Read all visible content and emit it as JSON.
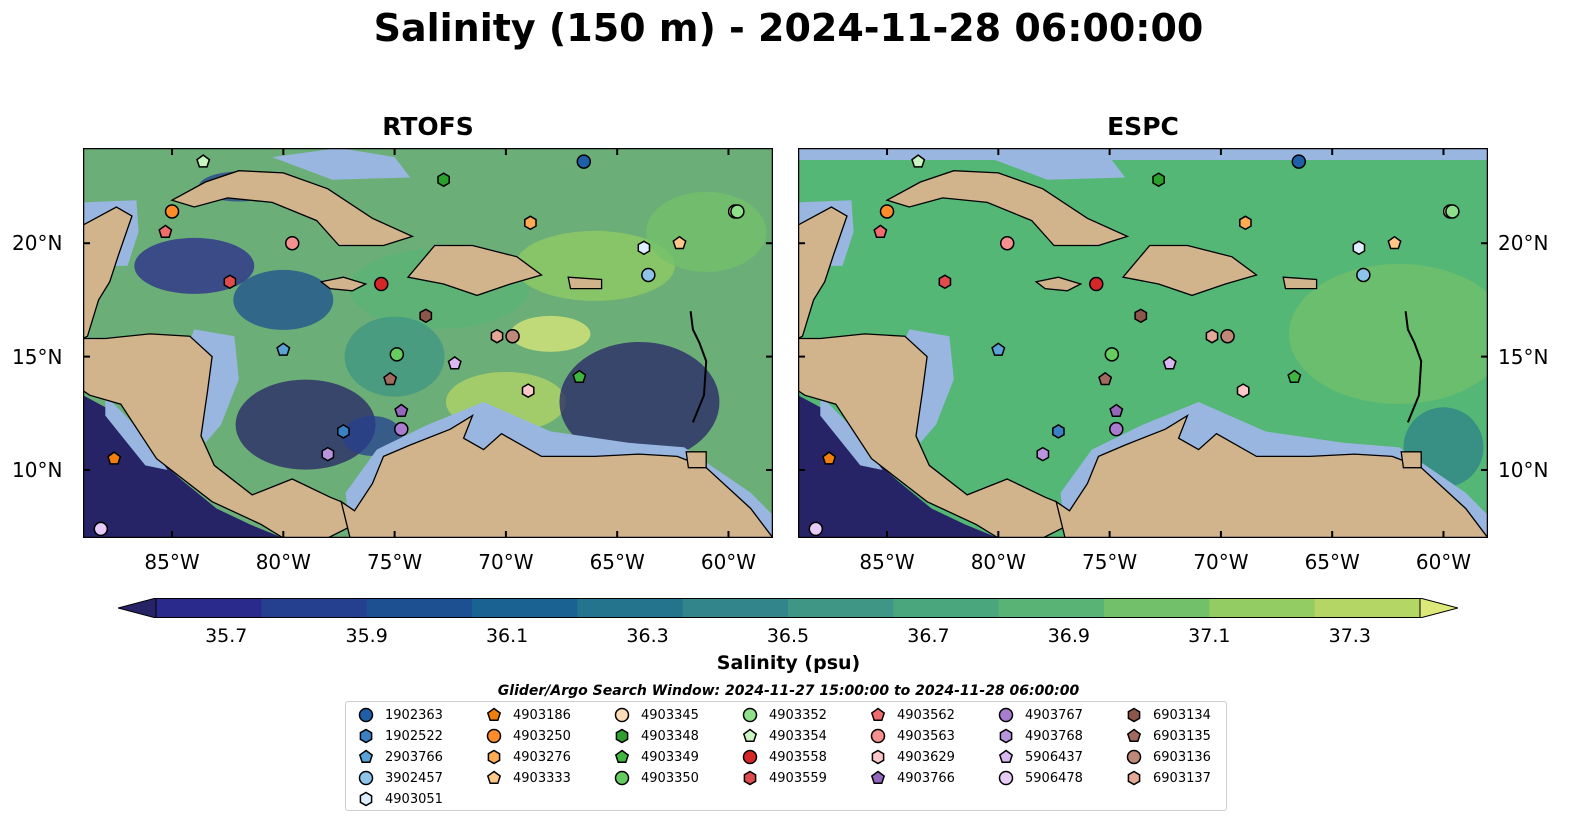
{
  "title": "Salinity (150 m) - 2024-11-28 06:00:00",
  "panels": [
    {
      "title": "RTOFS",
      "fill": "#6cae77"
    },
    {
      "title": "ESPC",
      "fill": "#55b775"
    }
  ],
  "map": {
    "lon_range": [
      -89.0,
      -58.0
    ],
    "lat_range": [
      7.0,
      24.2
    ],
    "lon_ticks": [
      "85°W",
      "80°W",
      "75°W",
      "70°W",
      "65°W",
      "60°W"
    ],
    "lon_tick_values": [
      -85,
      -80,
      -75,
      -70,
      -65,
      -60
    ],
    "lat_ticks": [
      "20°N",
      "15°N",
      "10°N"
    ],
    "lat_tick_values": [
      20,
      15,
      10
    ],
    "land_color": "#d2b48c",
    "shelf_color": "#99b6e0"
  },
  "colorbar": {
    "min": 35.6,
    "max": 37.4,
    "labels": [
      "35.7",
      "35.9",
      "36.1",
      "36.3",
      "36.5",
      "36.7",
      "36.9",
      "37.1",
      "37.3"
    ],
    "label_values": [
      35.7,
      35.9,
      36.1,
      36.3,
      36.5,
      36.7,
      36.9,
      37.1,
      37.3
    ],
    "colors": [
      "#272367",
      "#2a2a8c",
      "#25408f",
      "#1d5090",
      "#1a6291",
      "#25748e",
      "#32858a",
      "#3f9684",
      "#4aa77d",
      "#59b375",
      "#73c06a",
      "#92cc63",
      "#b4d664",
      "#dce87a"
    ],
    "title": "Salinity (psu)"
  },
  "legend": {
    "title": "Glider/Argo Search Window: 2024-11-27 15:00:00 to 2024-11-28 06:00:00",
    "items": [
      {
        "label": "1902363",
        "marker": "circle",
        "color": "#1f5fa8",
        "lon": -66.5,
        "lat": 23.6
      },
      {
        "label": "1902522",
        "marker": "hexagon",
        "color": "#3b7fc4",
        "lon": -77.3,
        "lat": 11.7
      },
      {
        "label": "2903766",
        "marker": "pentagon",
        "color": "#5aa2d8",
        "lon": -80.0,
        "lat": 15.3
      },
      {
        "label": "3902457",
        "marker": "circle",
        "color": "#8ec3ea",
        "lon": -63.6,
        "lat": 18.6
      },
      {
        "label": "4903051",
        "marker": "hexagon",
        "color": "#ddeeff",
        "lon": -63.8,
        "lat": 19.8
      },
      {
        "label": "4903186",
        "marker": "pentagon",
        "color": "#f07f0e",
        "lon": -87.6,
        "lat": 10.5
      },
      {
        "label": "4903250",
        "marker": "circle",
        "color": "#ff8c2a",
        "lon": -85.0,
        "lat": 21.4
      },
      {
        "label": "4903276",
        "marker": "hexagon",
        "color": "#ffaa55",
        "lon": -68.9,
        "lat": 20.9
      },
      {
        "label": "4903333",
        "marker": "pentagon",
        "color": "#ffc88a",
        "lon": -62.2,
        "lat": 20.0
      },
      {
        "label": "4903345",
        "marker": "circle",
        "color": "#ffdcb8",
        "lon": -59.7,
        "lat": 21.4
      },
      {
        "label": "4903348",
        "marker": "hexagon",
        "color": "#2ca02c",
        "lon": -72.8,
        "lat": 22.8
      },
      {
        "label": "4903349",
        "marker": "pentagon",
        "color": "#3fb63f",
        "lon": -66.7,
        "lat": 14.1
      },
      {
        "label": "4903350",
        "marker": "circle",
        "color": "#66cc5f",
        "lon": -74.9,
        "lat": 15.1
      },
      {
        "label": "4903352",
        "marker": "circle",
        "color": "#8ee08a",
        "lon": -59.6,
        "lat": 21.4
      },
      {
        "label": "4903354",
        "marker": "pentagon",
        "color": "#c9f5c1",
        "lon": -83.6,
        "lat": 23.6
      },
      {
        "label": "4903558",
        "marker": "circle",
        "color": "#d62728",
        "lon": -75.6,
        "lat": 18.2
      },
      {
        "label": "4903559",
        "marker": "hexagon",
        "color": "#e04b4b",
        "lon": -82.4,
        "lat": 18.3
      },
      {
        "label": "4903562",
        "marker": "pentagon",
        "color": "#f06d6d",
        "lon": -85.3,
        "lat": 20.5
      },
      {
        "label": "4903563",
        "marker": "circle",
        "color": "#f49090",
        "lon": -79.6,
        "lat": 20.0
      },
      {
        "label": "4903629",
        "marker": "hexagon",
        "color": "#ffc8c8",
        "lon": -69.0,
        "lat": 13.5
      },
      {
        "label": "4903766",
        "marker": "pentagon",
        "color": "#9467bd",
        "lon": -74.7,
        "lat": 12.6
      },
      {
        "label": "4903767",
        "marker": "circle",
        "color": "#a87dd0",
        "lon": -74.7,
        "lat": 11.8
      },
      {
        "label": "4903768",
        "marker": "hexagon",
        "color": "#b995de",
        "lon": -78.0,
        "lat": 10.7
      },
      {
        "label": "5906437",
        "marker": "pentagon",
        "color": "#d9b8f2",
        "lon": -72.3,
        "lat": 14.7
      },
      {
        "label": "5906478",
        "marker": "circle",
        "color": "#e8ccf8",
        "lon": -88.2,
        "lat": 7.4
      },
      {
        "label": "6903134",
        "marker": "hexagon",
        "color": "#8c564b",
        "lon": -73.6,
        "lat": 16.8
      },
      {
        "label": "6903135",
        "marker": "pentagon",
        "color": "#a06a5e",
        "lon": -75.2,
        "lat": 14.0
      },
      {
        "label": "6903136",
        "marker": "circle",
        "color": "#c08878",
        "lon": -69.7,
        "lat": 15.9
      },
      {
        "label": "6903137",
        "marker": "hexagon",
        "color": "#e3a896",
        "lon": -70.4,
        "lat": 15.9
      }
    ]
  }
}
